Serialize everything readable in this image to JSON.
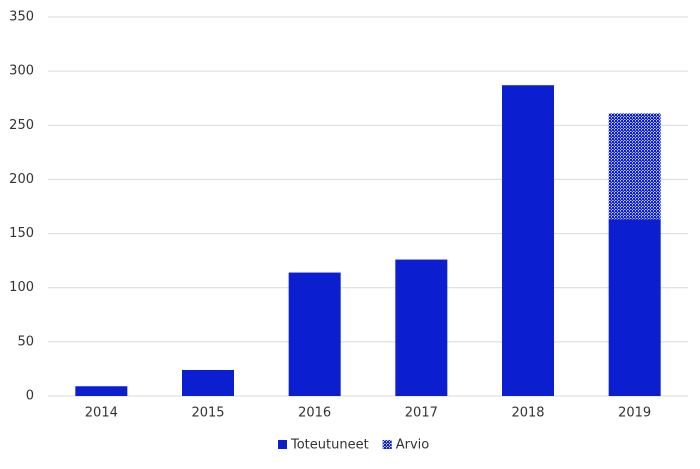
{
  "chart_data": {
    "type": "stacked-bar",
    "categories": [
      "2014",
      "2015",
      "2016",
      "2017",
      "2018",
      "2019"
    ],
    "series": [
      {
        "name": "Toteutuneet",
        "color": "#0b1fd1",
        "values": [
          9,
          24,
          114,
          126,
          287,
          163
        ]
      },
      {
        "name": "Arvio",
        "color": "#0b1fd1",
        "pattern": "crosshatch",
        "values": [
          null,
          null,
          null,
          null,
          null,
          98
        ]
      }
    ],
    "ylim": [
      0,
      350
    ],
    "yticks": [
      0,
      50,
      100,
      150,
      200,
      250,
      300,
      350
    ],
    "grid": true,
    "legend": "bottom"
  }
}
